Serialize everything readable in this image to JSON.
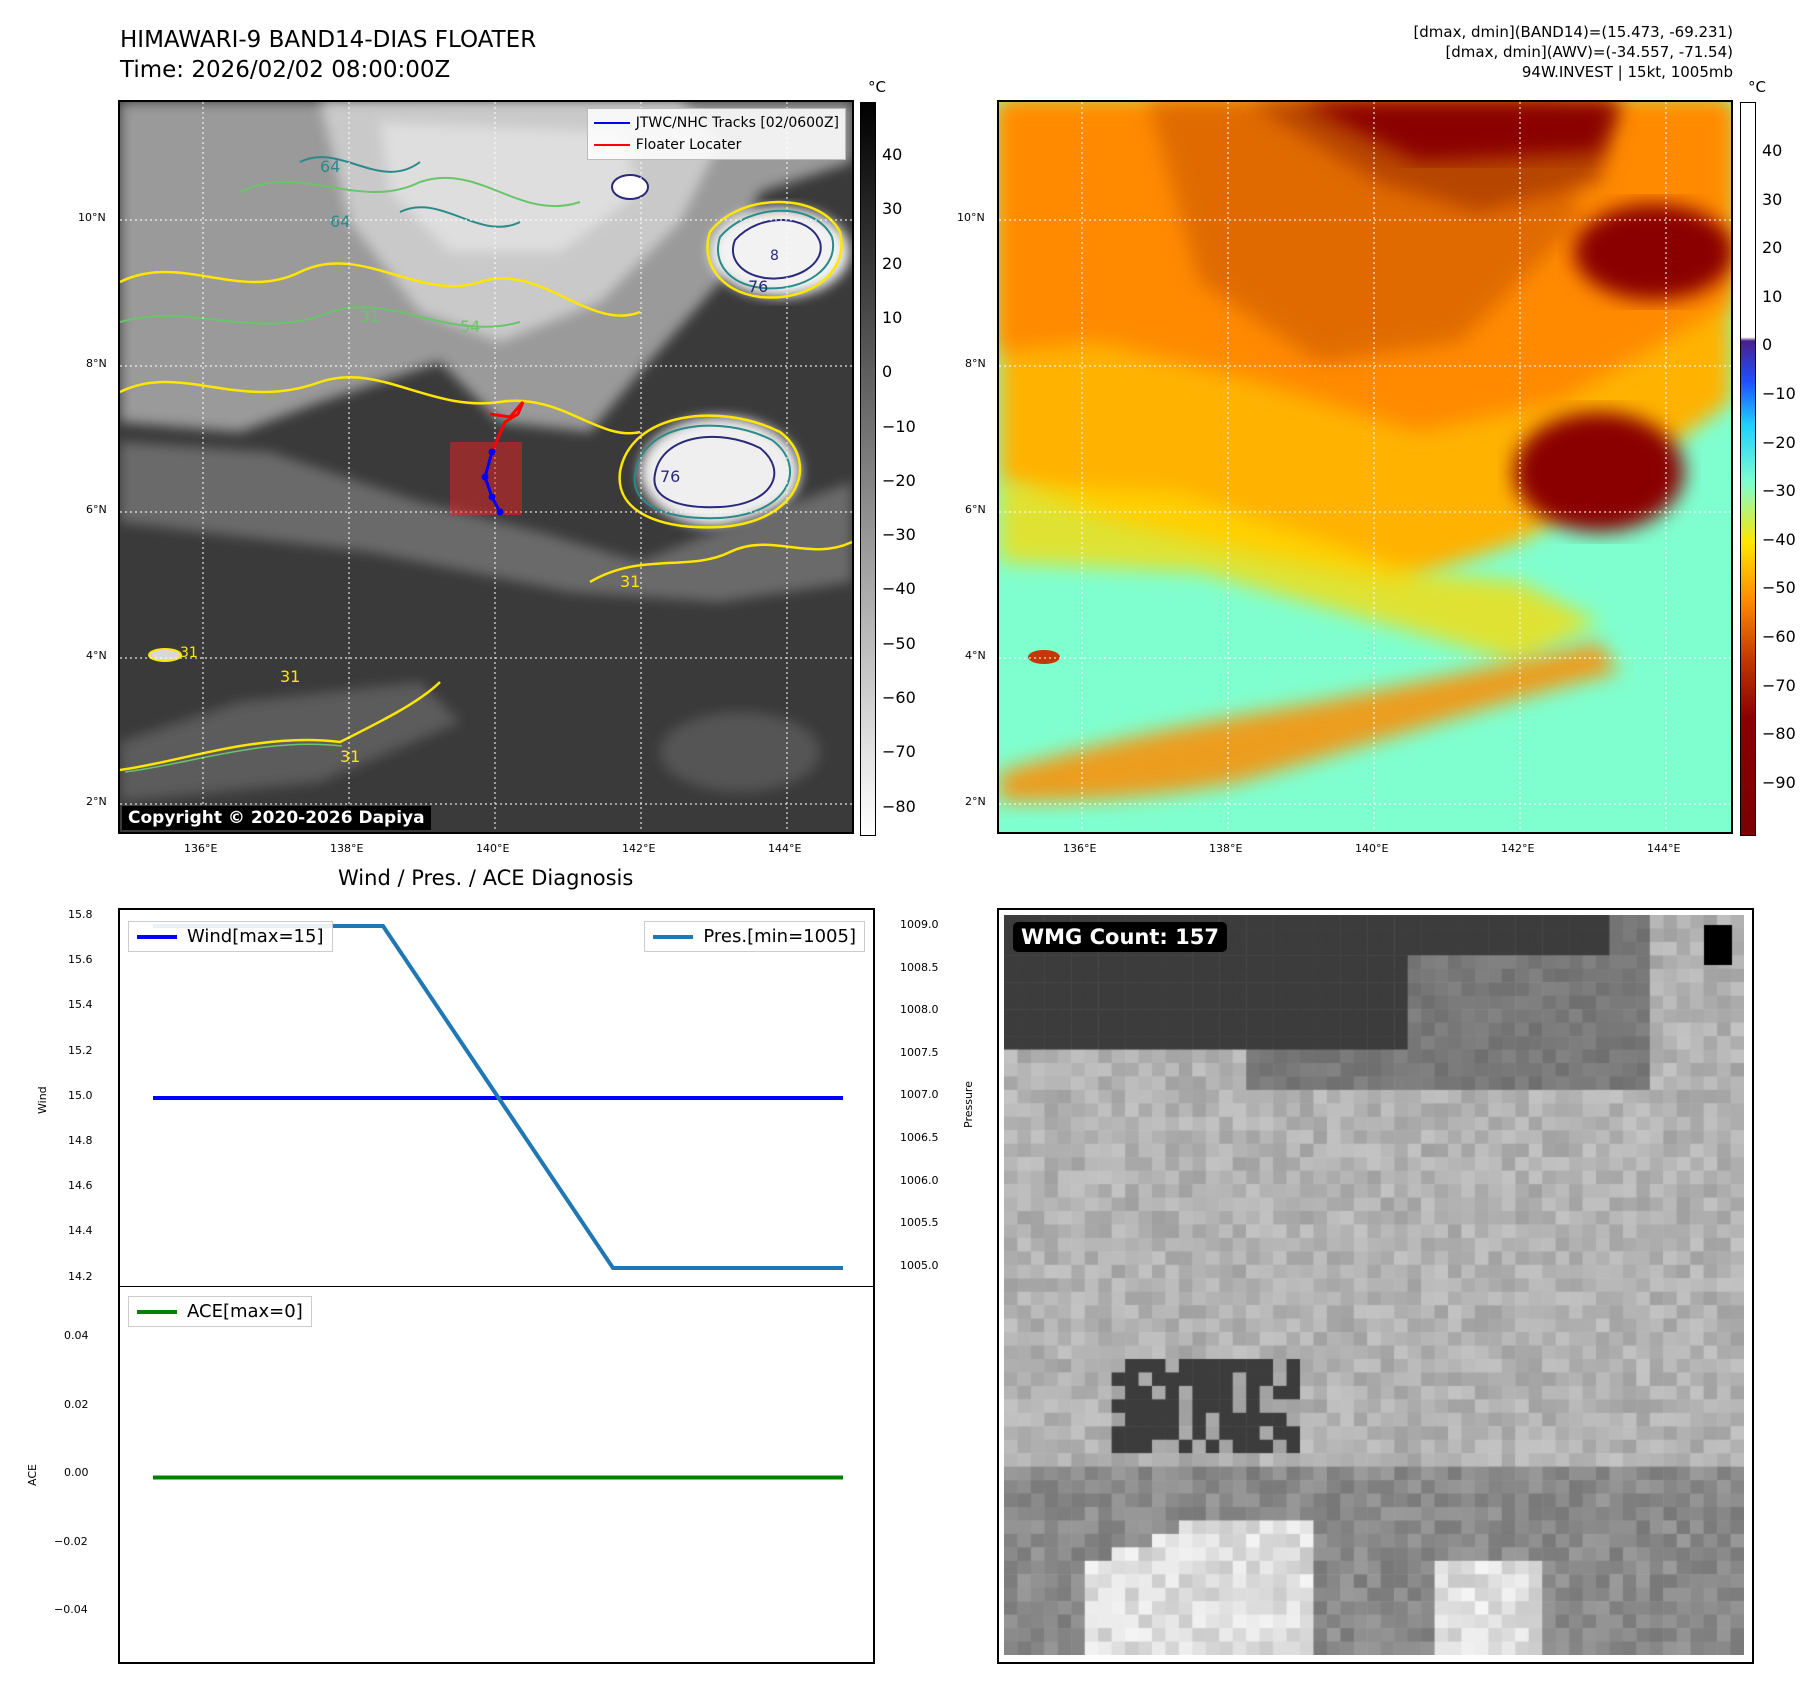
{
  "header": {
    "title_line1": "HIMAWARI-9 BAND14-DIAS FLOATER",
    "title_line2": "Time: 2026/02/02 08:00:00Z",
    "info_line1": "[dmax, dmin](BAND14)=(15.473, -69.231)",
    "info_line2": "[dmax, dmin](AWV)=(-34.557, -71.54)",
    "info_line3": "94W.INVEST | 15kt, 1005mb"
  },
  "maps": {
    "lat_labels": [
      "10°N",
      "8°N",
      "6°N",
      "4°N",
      "2°N"
    ],
    "lon_labels": [
      "136°E",
      "138°E",
      "140°E",
      "142°E",
      "144°E"
    ],
    "copyright": "Copyright © 2020-2026 Dapiya",
    "legend_track": "JTWC/NHC Tracks [02/0600Z]",
    "legend_floater": "Floater Locater",
    "contour_labels": [
      "64",
      "64",
      "54",
      "31",
      "31",
      "76",
      "31",
      "31",
      "31",
      "64",
      "76",
      "76",
      "8"
    ],
    "cb_unit": "°C",
    "cb1_ticks": [
      "40",
      "30",
      "20",
      "10",
      "0",
      "−10",
      "−20",
      "−30",
      "−40",
      "−50",
      "−60",
      "−70",
      "−80"
    ],
    "cb2_ticks": [
      "40",
      "30",
      "20",
      "10",
      "0",
      "−10",
      "−20",
      "−30",
      "−40",
      "−50",
      "−60",
      "−70",
      "−80",
      "−90"
    ],
    "colors": {
      "track": "#0000ff",
      "floater": "#ff0000",
      "contour_yellow": "#ffe600",
      "contour_green": "#6ac46a",
      "contour_teal": "#2a8a8a",
      "contour_navy": "#2a2a7a"
    }
  },
  "diagnosis": {
    "title": "Wind / Pres. / ACE Diagnosis",
    "wind_legend": "Wind[max=15]",
    "pres_legend": "Pres.[min=1005]",
    "ace_legend": "ACE[max=0]",
    "wind_axis_label": "Wind",
    "pres_axis_label": "Pressure",
    "ace_axis_label": "ACE",
    "wind_ticks": [
      "15.8",
      "15.6",
      "15.4",
      "15.2",
      "15.0",
      "14.8",
      "14.6",
      "14.4",
      "14.2"
    ],
    "pres_ticks": [
      "1009.0",
      "1008.5",
      "1008.0",
      "1007.5",
      "1007.0",
      "1006.5",
      "1006.0",
      "1005.5",
      "1005.0"
    ],
    "ace_ticks": [
      "0.04",
      "0.02",
      "0.00",
      "−0.02",
      "−0.04"
    ]
  },
  "wmg": {
    "badge": "WMG Count: 157"
  },
  "chart_data": [
    {
      "type": "line",
      "title": "Wind / Pres. / ACE Diagnosis",
      "ylabel": "Wind",
      "ylim": [
        14.2,
        15.8
      ],
      "series": [
        {
          "name": "Wind[max=15]",
          "x": [
            0,
            1,
            2,
            3
          ],
          "values": [
            15.0,
            15.0,
            15.0,
            15.0
          ],
          "color": "#0000ff"
        }
      ]
    },
    {
      "type": "line",
      "ylabel": "Pressure",
      "ylim": [
        1004.95,
        1009.1
      ],
      "series": [
        {
          "name": "Pres.[min=1005]",
          "x": [
            0,
            1,
            2,
            3
          ],
          "values": [
            1009,
            1009,
            1005,
            1005
          ],
          "color": "#1f77b4"
        }
      ]
    },
    {
      "type": "line",
      "ylabel": "ACE",
      "ylim": [
        -0.05,
        0.05
      ],
      "series": [
        {
          "name": "ACE[max=0]",
          "x": [
            0,
            1,
            2,
            3
          ],
          "values": [
            0,
            0,
            0,
            0
          ],
          "color": "#008000"
        }
      ]
    }
  ]
}
